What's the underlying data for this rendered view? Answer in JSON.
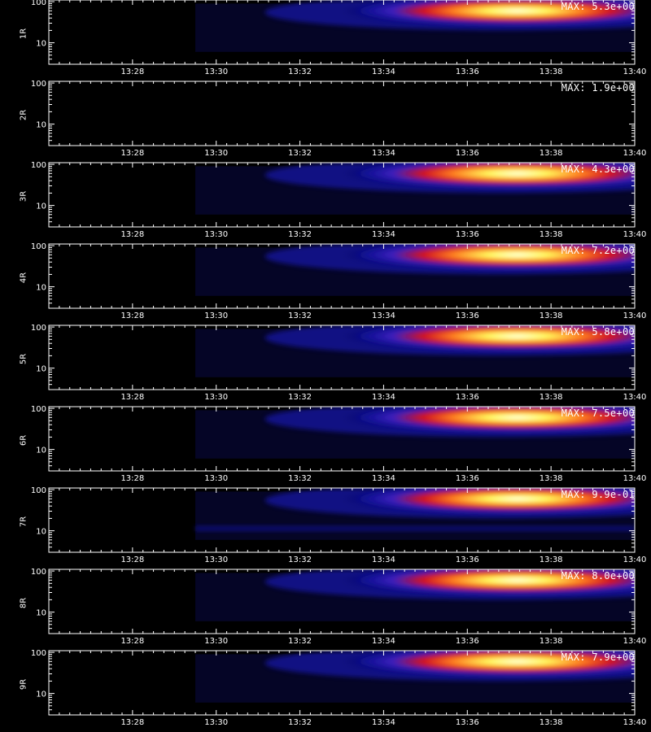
{
  "chart_data": {
    "type": "heatmap",
    "x_ticks": [
      "13:28",
      "13:30",
      "13:32",
      "13:34",
      "13:36",
      "13:38",
      "13:40"
    ],
    "x_range": [
      "13:26",
      "13:40"
    ],
    "y_scale": "log",
    "y_ticks": [
      "10",
      "100"
    ],
    "panels": [
      {
        "label": "1R",
        "max_label": "MAX: 5.3e+00",
        "intensity": 1.0
      },
      {
        "label": "2R",
        "max_label": "MAX: 1.9e+00",
        "intensity": 0.0
      },
      {
        "label": "3R",
        "max_label": "MAX: 4.3e+00",
        "intensity": 1.0
      },
      {
        "label": "4R",
        "max_label": "MAX: 7.2e+00",
        "intensity": 1.0
      },
      {
        "label": "5R",
        "max_label": "MAX: 5.8e+00",
        "intensity": 1.0
      },
      {
        "label": "6R",
        "max_label": "MAX: 7.5e+00",
        "intensity": 1.0
      },
      {
        "label": "7R",
        "max_label": "MAX: 9.9e-01",
        "intensity": 1.0
      },
      {
        "label": "8R",
        "max_label": "MAX: 8.0e+00",
        "intensity": 1.0
      },
      {
        "label": "9R",
        "max_label": "MAX: 7.9e+00",
        "intensity": 1.0
      }
    ]
  },
  "colors": {
    "background": "#000000",
    "axis": "#ffffff"
  }
}
